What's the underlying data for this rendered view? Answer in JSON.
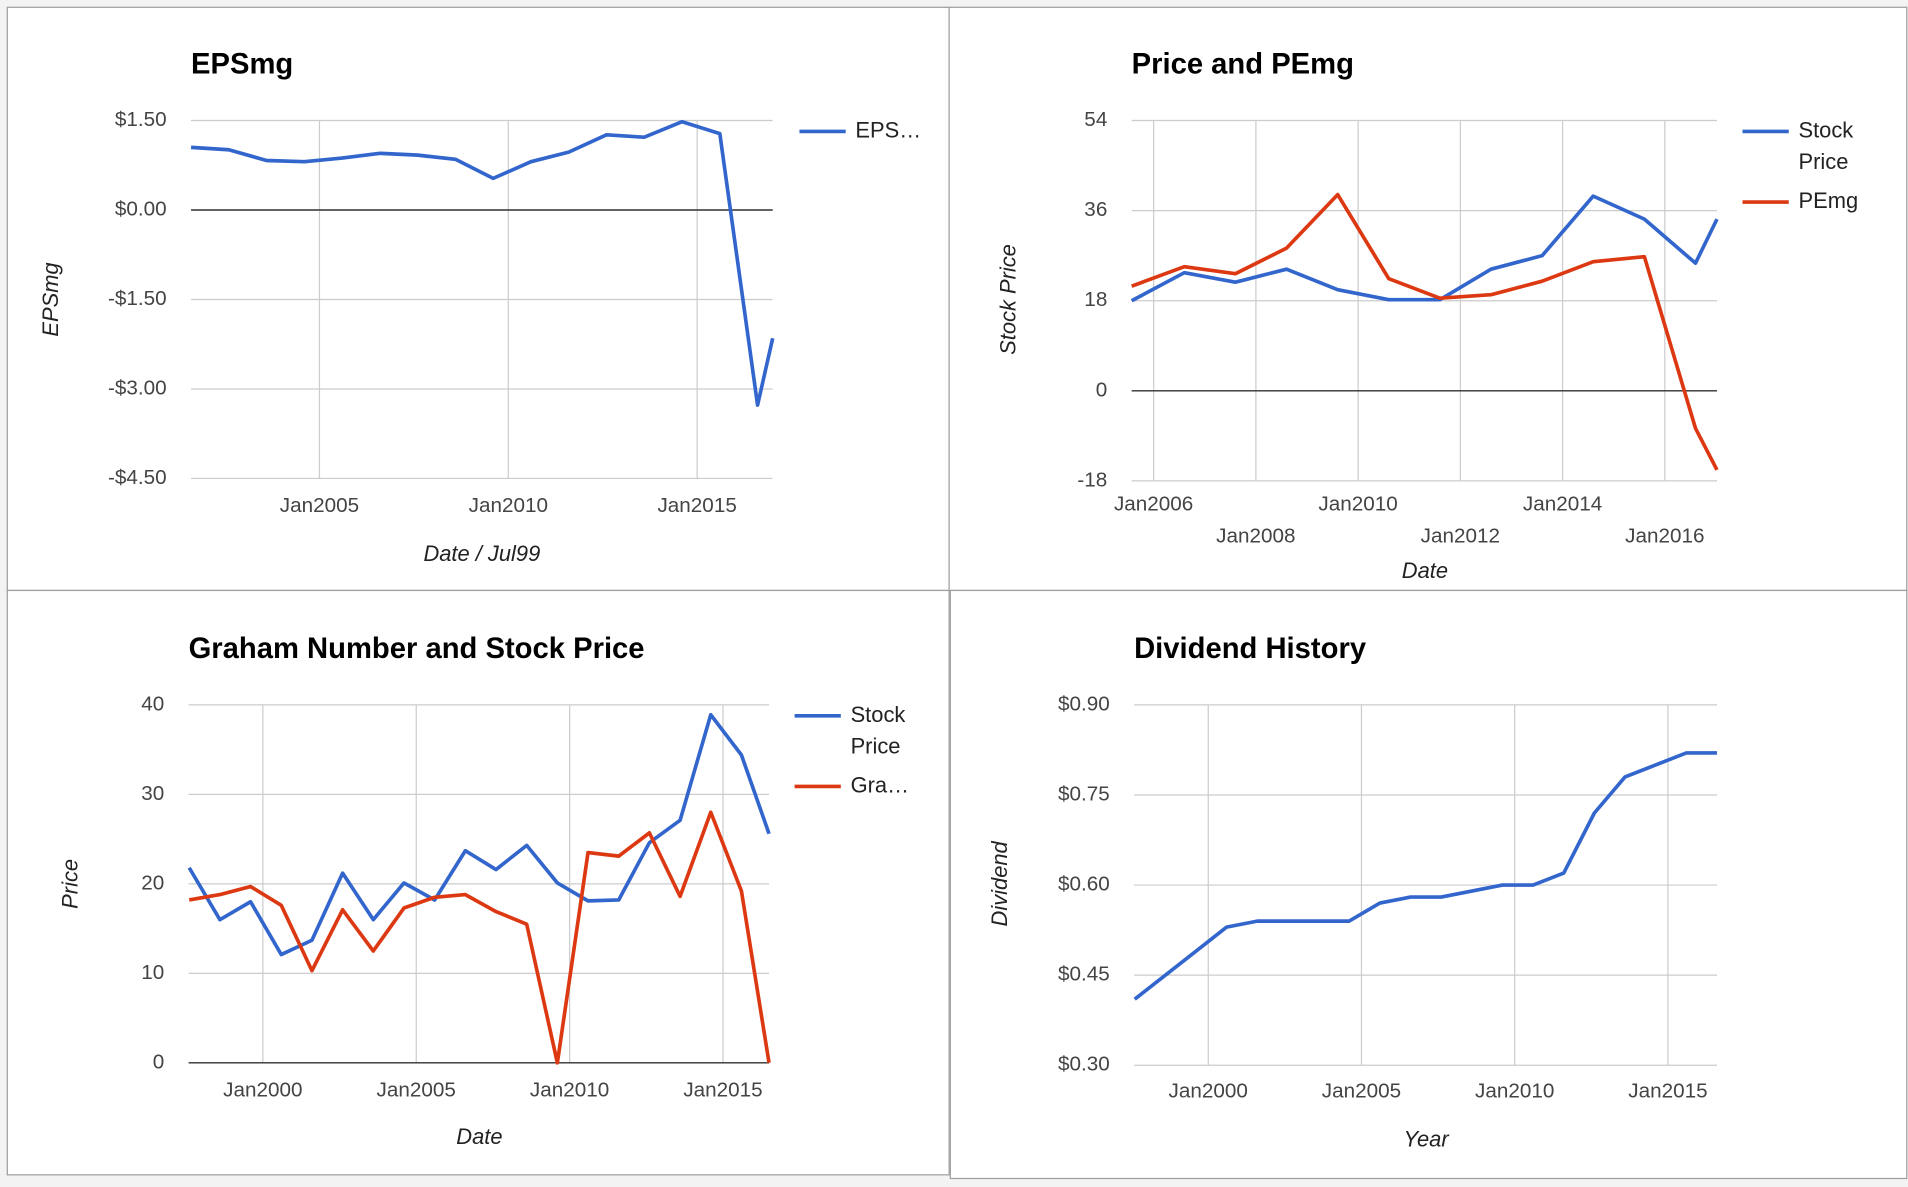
{
  "chart_data": [
    {
      "type": "line",
      "title": "EPSmg",
      "xlabel": "Date / Jul99",
      "ylabel": "EPSmg",
      "x": [
        2001.6,
        2002.6,
        2003.6,
        2004.6,
        2005.6,
        2006.6,
        2007.6,
        2008.6,
        2009.6,
        2010.6,
        2011.6,
        2012.6,
        2013.6,
        2014.6,
        2015.6,
        2016.6,
        2017.0
      ],
      "series": [
        {
          "name": "EPS…",
          "color": "#3366cc",
          "values": [
            1.05,
            1.01,
            0.83,
            0.81,
            0.87,
            0.95,
            0.92,
            0.85,
            0.53,
            0.81,
            0.97,
            1.26,
            1.22,
            1.48,
            1.28,
            -3.27,
            -2.15
          ]
        }
      ],
      "xlim": [
        2001.6,
        2017.0
      ],
      "xticks": [
        {
          "value": 2005,
          "label": "Jan2005"
        },
        {
          "value": 2010,
          "label": "Jan2010"
        },
        {
          "value": 2015,
          "label": "Jan2015"
        }
      ],
      "ylim": [
        -4.5,
        1.5
      ],
      "yticks": [
        {
          "value": -4.5,
          "label": "-$4.50"
        },
        {
          "value": -3,
          "label": "-$3.00"
        },
        {
          "value": -1.5,
          "label": "-$1.50"
        },
        {
          "value": 0,
          "label": "$0.00"
        },
        {
          "value": 1.5,
          "label": "$1.50"
        }
      ],
      "grid": true,
      "legend": "right"
    },
    {
      "type": "line",
      "title": "Price and PEmg",
      "xlabel": "Date",
      "ylabel": "Stock Price",
      "x": [
        2005.57,
        2006.6,
        2007.6,
        2008.6,
        2009.6,
        2010.6,
        2011.6,
        2012.6,
        2013.6,
        2014.6,
        2015.6,
        2016.6,
        2017.02
      ],
      "series": [
        {
          "name": "Stock Price",
          "color": "#3366cc",
          "values": [
            18,
            23.6,
            21.7,
            24.3,
            20.2,
            18.2,
            18.2,
            24.3,
            27,
            38.9,
            34.3,
            25.5,
            34.3
          ]
        },
        {
          "name": "PEmg",
          "color": "#dc3912",
          "values": [
            20.9,
            24.8,
            23.4,
            28.5,
            39.2,
            22.4,
            18.5,
            19.2,
            21.9,
            25.8,
            26.8,
            -7.5,
            -15.8
          ]
        }
      ],
      "xlim": [
        2005.57,
        2017.02
      ],
      "xticks": [
        {
          "value": 2006,
          "label": "Jan2006"
        },
        {
          "value": 2008,
          "label": "Jan2008"
        },
        {
          "value": 2010,
          "label": "Jan2010"
        },
        {
          "value": 2012,
          "label": "Jan2012"
        },
        {
          "value": 2014,
          "label": "Jan2014"
        },
        {
          "value": 2016,
          "label": "Jan2016"
        }
      ],
      "ylim": [
        -18,
        54
      ],
      "yticks": [
        -18,
        0,
        18,
        36,
        54
      ],
      "grid": true,
      "legend": "right"
    },
    {
      "type": "line",
      "title": "Graham Number and Stock Price",
      "xlabel": "Date",
      "ylabel": "Price",
      "x": [
        1997.6,
        1998.6,
        1999.6,
        2000.6,
        2001.6,
        2002.6,
        2003.6,
        2004.6,
        2005.6,
        2006.6,
        2007.6,
        2008.6,
        2009.6,
        2010.6,
        2011.6,
        2012.6,
        2013.6,
        2014.6,
        2015.6,
        2016.5
      ],
      "series": [
        {
          "name": "Stock Price",
          "color": "#3366cc",
          "values": [
            21.8,
            16,
            18,
            12.1,
            13.7,
            21.2,
            16,
            20.1,
            18.2,
            23.7,
            21.6,
            24.3,
            20.1,
            18.1,
            18.2,
            24.6,
            27.1,
            38.9,
            34.4,
            25.6
          ]
        },
        {
          "name": "Gra…",
          "color": "#dc3912",
          "values": [
            18.2,
            18.8,
            19.7,
            17.6,
            10.3,
            17.1,
            12.5,
            17.3,
            18.5,
            18.8,
            16.9,
            15.5,
            0,
            23.5,
            23.1,
            25.7,
            18.6,
            28,
            19.2,
            0
          ]
        }
      ],
      "xlim": [
        1997.58,
        2016.5
      ],
      "xticks": [
        {
          "value": 2000,
          "label": "Jan2000"
        },
        {
          "value": 2005,
          "label": "Jan2005"
        },
        {
          "value": 2010,
          "label": "Jan2010"
        },
        {
          "value": 2015,
          "label": "Jan2015"
        }
      ],
      "ylim": [
        0,
        40
      ],
      "yticks": [
        0,
        10,
        20,
        30,
        40
      ],
      "grid": true,
      "legend": "right"
    },
    {
      "type": "line",
      "title": "Dividend History",
      "xlabel": "Year",
      "ylabel": "Dividend",
      "x": [
        1997.6,
        1998.6,
        1999.6,
        2000.6,
        2001.6,
        2002.6,
        2003.6,
        2004.6,
        2005.6,
        2006.6,
        2007.6,
        2008.6,
        2009.6,
        2010.6,
        2011.6,
        2012.6,
        2013.6,
        2014.6,
        2015.6,
        2016.6
      ],
      "series": [
        {
          "name": "Dividend",
          "color": "#3366cc",
          "values": [
            0.41,
            0.45,
            0.49,
            0.53,
            0.54,
            0.54,
            0.54,
            0.54,
            0.57,
            0.58,
            0.58,
            0.59,
            0.6,
            0.6,
            0.62,
            0.72,
            0.78,
            0.8,
            0.82,
            0.82
          ]
        }
      ],
      "xlim": [
        1997.58,
        2016.6
      ],
      "xticks": [
        {
          "value": 2000,
          "label": "Jan2000"
        },
        {
          "value": 2005,
          "label": "Jan2005"
        },
        {
          "value": 2010,
          "label": "Jan2010"
        },
        {
          "value": 2015,
          "label": "Jan2015"
        }
      ],
      "ylim": [
        0.3,
        0.9
      ],
      "yticks": [
        {
          "value": 0.3,
          "label": "$0.30"
        },
        {
          "value": 0.45,
          "label": "$0.45"
        },
        {
          "value": 0.6,
          "label": "$0.60"
        },
        {
          "value": 0.75,
          "label": "$0.75"
        },
        {
          "value": 0.9,
          "label": "$0.90"
        }
      ],
      "grid": true,
      "legend": "none"
    }
  ]
}
